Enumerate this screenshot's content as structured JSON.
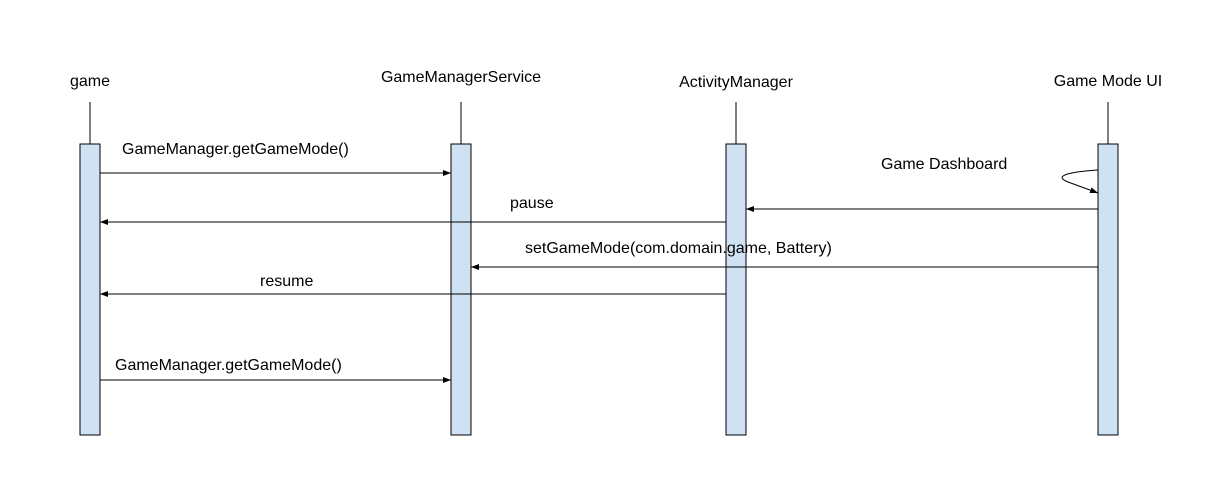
{
  "diagram": {
    "type": "sequence",
    "colors": {
      "activation_fill": "#cfe2f3",
      "line": "#000000"
    },
    "participants": [
      {
        "id": "game",
        "label": "game"
      },
      {
        "id": "gms",
        "label": "GameManagerService"
      },
      {
        "id": "am",
        "label": "ActivityManager"
      },
      {
        "id": "ui",
        "label": "Game Mode UI"
      }
    ],
    "messages": [
      {
        "from": "game",
        "to": "gms",
        "label": "GameManager.getGameMode()"
      },
      {
        "from": "ui",
        "to": "ui",
        "label": "Game Dashboard"
      },
      {
        "from": "ui",
        "to": "am",
        "label": ""
      },
      {
        "from": "am",
        "to": "game",
        "label": "pause"
      },
      {
        "from": "ui",
        "to": "gms",
        "label": "setGameMode(com.domain.game, Battery)"
      },
      {
        "from": "am",
        "to": "game",
        "label": "resume"
      },
      {
        "from": "game",
        "to": "gms",
        "label": "GameManager.getGameMode()"
      }
    ]
  }
}
